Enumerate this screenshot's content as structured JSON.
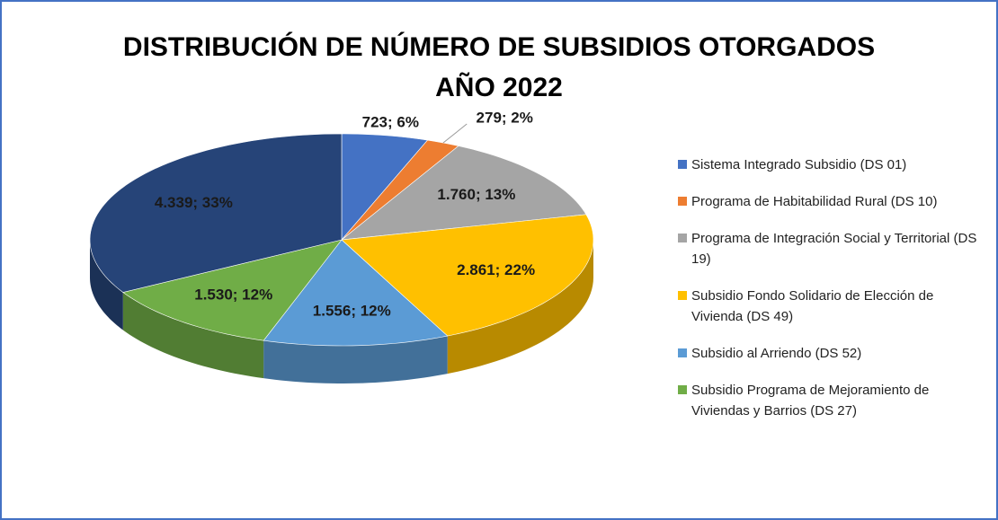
{
  "chart_data": {
    "type": "pie3d",
    "title": [
      "DISTRIBUCIÓN DE NÚMERO DE SUBSIDIOS OTORGADOS",
      "AÑO 2022"
    ],
    "categories": [
      "Sistema Integrado Subsidio (DS 01)",
      "Programa de Habitabilidad Rural (DS 10)",
      "Programa de Integración Social y Territorial (DS 19)",
      "Subsidio Fondo Solidario de Elección de Vivienda (DS 49)",
      "Subsidio al Arriendo (DS 52)",
      "Subsidio Programa de Mejoramiento de Viviendas y Barrios (DS 27)",
      null
    ],
    "values": [
      723,
      279,
      1760,
      2861,
      1556,
      1530,
      4339
    ],
    "value_labels": [
      "723; 6%",
      "279; 2%",
      "1.760; 13%",
      "2.861; 22%",
      "1.556; 12%",
      "1.530; 12%",
      "4.339; 33%"
    ],
    "colors": [
      "#4472c4",
      "#ed7d31",
      "#a5a5a5",
      "#ffc000",
      "#5b9bd5",
      "#70ad47",
      "#264478"
    ],
    "legend": "right"
  }
}
